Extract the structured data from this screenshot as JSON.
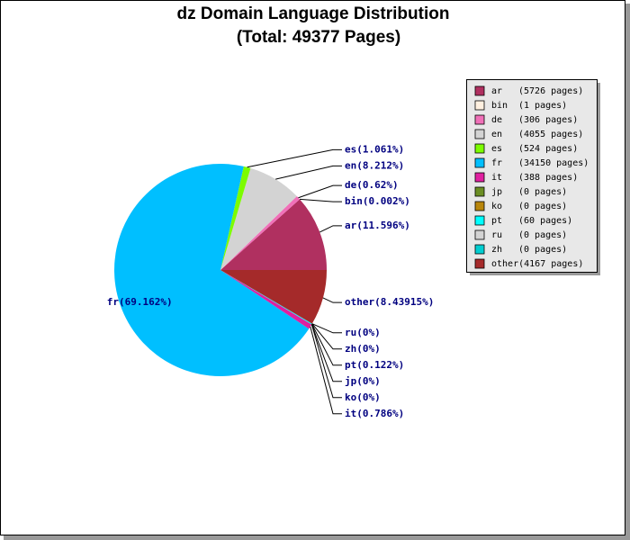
{
  "chart_data": {
    "type": "pie",
    "title": "dz Domain Language Distribution",
    "subtitle": "(Total: 49377 Pages)",
    "categories": [
      "ar",
      "bin",
      "de",
      "en",
      "es",
      "fr",
      "it",
      "jp",
      "ko",
      "pt",
      "ru",
      "zh",
      "other"
    ],
    "values": [
      11.596,
      0.002,
      0.62,
      8.212,
      1.061,
      69.162,
      0.786,
      0,
      0,
      0.122,
      0,
      0,
      8.43915
    ],
    "value_labels": [
      "(11.596%)",
      "(0.002%)",
      "(0.62%)",
      "(8.212%)",
      "(1.061%)",
      "(69.162%)",
      "(0.786%)",
      "(0%)",
      "(0%)",
      "(0.122%)",
      "(0%)",
      "(0%)",
      "(8.43915%)"
    ],
    "pages": [
      5726,
      1,
      306,
      4055,
      524,
      34150,
      388,
      0,
      0,
      60,
      0,
      0,
      4167
    ],
    "pages_labels": [
      "(5726 pages)",
      "(1 pages)",
      "(306 pages)",
      "(4055 pages)",
      "(524 pages)",
      "(34150 pages)",
      "(388 pages)",
      "(0 pages)",
      "(0 pages)",
      "(60 pages)",
      "(0 pages)",
      "(0 pages)",
      "(4167 pages)"
    ],
    "colors": [
      "#b03060",
      "#fff0e0",
      "#f070b8",
      "#d3d3d3",
      "#7cfc00",
      "#00bfff",
      "#e020a0",
      "#6b8e23",
      "#b8860b",
      "#00ffff",
      "#d3d3d3",
      "#00ced1",
      "#a52a2a"
    ]
  }
}
